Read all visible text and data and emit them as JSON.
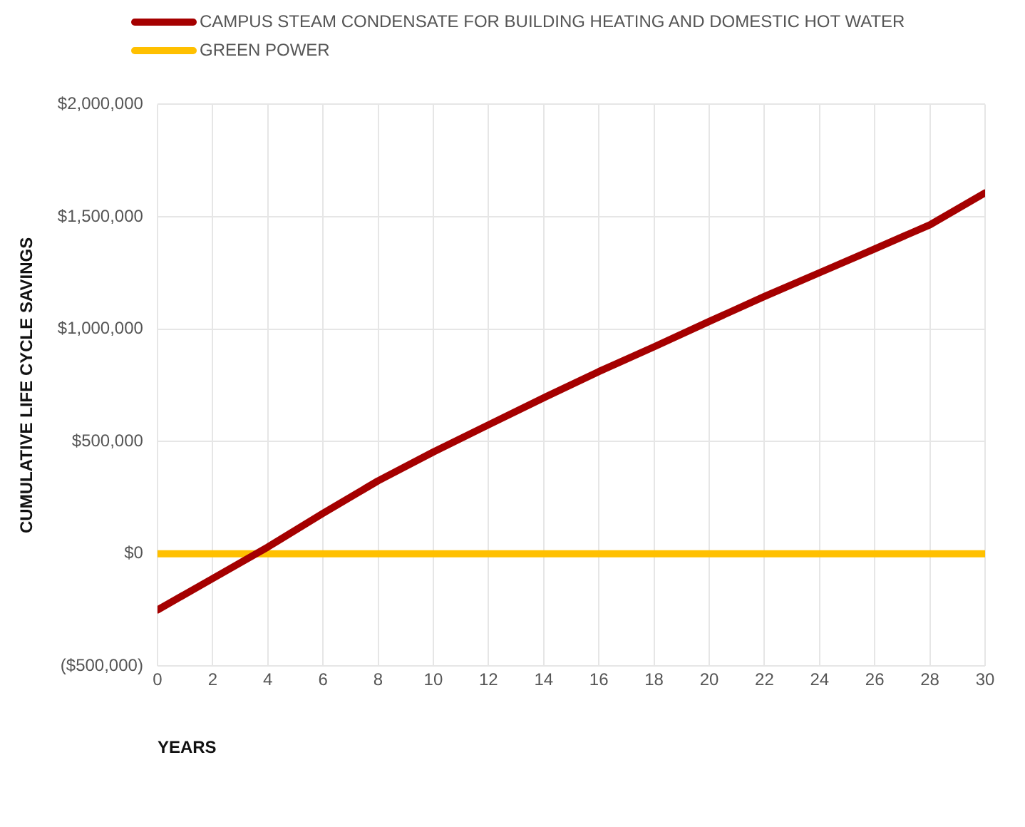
{
  "chart_data": {
    "type": "line",
    "xlabel": "YEARS",
    "ylabel": "CUMULATIVE LIFE CYCLE SAVINGS",
    "x": [
      0,
      2,
      4,
      6,
      8,
      10,
      12,
      14,
      16,
      18,
      20,
      22,
      24,
      26,
      28,
      30
    ],
    "series": [
      {
        "name": "CAMPUS STEAM CONDENSATE FOR BUILDING HEATING AND DOMESTIC HOT WATER",
        "color": "#a50000",
        "values": [
          -250000,
          -110000,
          30000,
          180000,
          325000,
          453000,
          574000,
          694000,
          811000,
          921000,
          1034000,
          1145000,
          1251000,
          1357000,
          1464000,
          1606000
        ]
      },
      {
        "name": "GREEN POWER",
        "color": "#ffc000",
        "values": [
          0,
          0,
          0,
          0,
          0,
          0,
          0,
          0,
          0,
          0,
          0,
          0,
          0,
          0,
          0,
          0
        ]
      }
    ],
    "xlim": [
      0,
      30
    ],
    "xticks": [
      0,
      2,
      4,
      6,
      8,
      10,
      12,
      14,
      16,
      18,
      20,
      22,
      24,
      26,
      28,
      30
    ],
    "ylim": [
      -500000,
      2000000
    ],
    "yticks": [
      {
        "value": -500000,
        "label": "($500,000)"
      },
      {
        "value": 0,
        "label": "$0"
      },
      {
        "value": 500000,
        "label": "$500,000"
      },
      {
        "value": 1000000,
        "label": "$1,000,000"
      },
      {
        "value": 1500000,
        "label": "$1,500,000"
      },
      {
        "value": 2000000,
        "label": "$2,000,000"
      }
    ],
    "grid": true,
    "legend": "top left",
    "marker": "none",
    "line_style": "solid"
  }
}
